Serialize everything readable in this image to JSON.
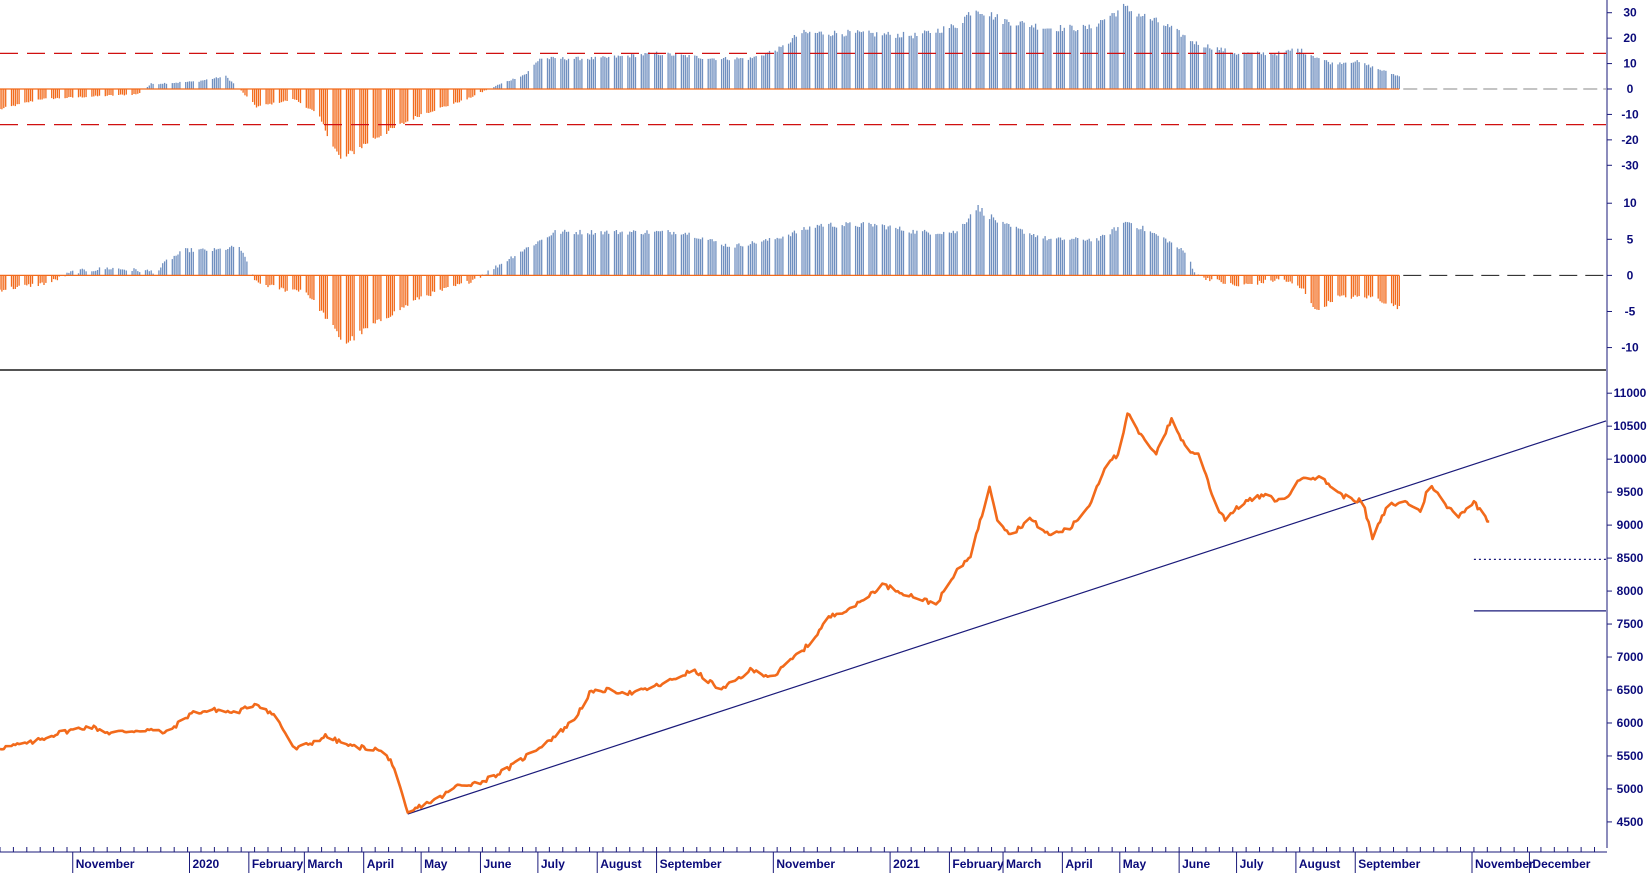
{
  "chart_data": [
    {
      "type": "bar",
      "panel": "oscillator-1",
      "x_start": "2019-09-24",
      "x_end": "2021-09-24",
      "ylim": [
        -35,
        35
      ],
      "ticks": [
        "30",
        "20",
        "10",
        "0",
        "-10",
        "-20",
        "-30"
      ],
      "tick_values": [
        30,
        20,
        10,
        0,
        -10,
        -20,
        -30
      ],
      "thresholds": [
        14,
        -14
      ],
      "colors": {
        "positive": "#6f8fbf",
        "negative": "#f26a1b",
        "threshold": "#d01010"
      },
      "anchors": [
        [
          "2019-09-24",
          -8
        ],
        [
          "2019-10-15",
          -4
        ],
        [
          "2019-11-10",
          -3
        ],
        [
          "2019-12-05",
          -2
        ],
        [
          "2019-12-12",
          2
        ],
        [
          "2020-01-05",
          3
        ],
        [
          "2020-01-20",
          5
        ],
        [
          "2020-01-27",
          0
        ],
        [
          "2020-02-05",
          -7
        ],
        [
          "2020-02-25",
          -4
        ],
        [
          "2020-03-08",
          -10
        ],
        [
          "2020-03-20",
          -28
        ],
        [
          "2020-04-05",
          -20
        ],
        [
          "2020-05-01",
          -10
        ],
        [
          "2020-05-25",
          -4
        ],
        [
          "2020-06-05",
          0
        ],
        [
          "2020-06-25",
          6
        ],
        [
          "2020-07-02",
          12
        ],
        [
          "2020-08-01",
          12
        ],
        [
          "2020-09-01",
          14
        ],
        [
          "2020-10-01",
          12
        ],
        [
          "2020-10-20",
          12
        ],
        [
          "2020-11-05",
          16
        ],
        [
          "2020-11-15",
          22
        ],
        [
          "2020-12-10",
          22
        ],
        [
          "2021-01-15",
          21
        ],
        [
          "2021-02-05",
          25
        ],
        [
          "2021-02-14",
          32
        ],
        [
          "2021-03-01",
          27
        ],
        [
          "2021-03-25",
          24
        ],
        [
          "2021-04-15",
          24
        ],
        [
          "2021-05-03",
          32
        ],
        [
          "2021-05-25",
          25
        ],
        [
          "2021-06-10",
          18
        ],
        [
          "2021-07-01",
          14
        ],
        [
          "2021-07-25",
          14
        ],
        [
          "2021-08-01",
          16
        ],
        [
          "2021-08-20",
          10
        ],
        [
          "2021-09-01",
          11
        ],
        [
          "2021-09-24",
          5
        ]
      ]
    },
    {
      "type": "bar",
      "panel": "oscillator-2",
      "x_start": "2019-09-24",
      "x_end": "2021-09-24",
      "ylim": [
        -12,
        11
      ],
      "ticks": [
        "10",
        "5",
        "0",
        "-5",
        "-10"
      ],
      "tick_values": [
        10,
        5,
        0,
        -5,
        -10
      ],
      "colors": {
        "positive": "#6f8fbf",
        "negative": "#f26a1b"
      },
      "anchors": [
        [
          "2019-09-24",
          -2
        ],
        [
          "2019-10-20",
          -1
        ],
        [
          "2019-11-01",
          0.5
        ],
        [
          "2019-11-20",
          1
        ],
        [
          "2019-12-15",
          0.5
        ],
        [
          "2019-12-20",
          2
        ],
        [
          "2019-12-30",
          3.5
        ],
        [
          "2020-01-15",
          3.5
        ],
        [
          "2020-01-27",
          4
        ],
        [
          "2020-02-05",
          -1
        ],
        [
          "2020-02-20",
          -2
        ],
        [
          "2020-03-01",
          -2
        ],
        [
          "2020-03-10",
          -5
        ],
        [
          "2020-03-22",
          -9.5
        ],
        [
          "2020-04-05",
          -7
        ],
        [
          "2020-05-01",
          -3
        ],
        [
          "2020-05-25",
          -1
        ],
        [
          "2020-06-05",
          0.5
        ],
        [
          "2020-06-20",
          3
        ],
        [
          "2020-07-10",
          6
        ],
        [
          "2020-08-15",
          6
        ],
        [
          "2020-09-15",
          6
        ],
        [
          "2020-10-10",
          4
        ],
        [
          "2020-11-01",
          5
        ],
        [
          "2020-11-25",
          7
        ],
        [
          "2020-12-25",
          7
        ],
        [
          "2021-01-15",
          6
        ],
        [
          "2021-02-05",
          6
        ],
        [
          "2021-02-15",
          9.5
        ],
        [
          "2021-03-01",
          7
        ],
        [
          "2021-03-25",
          5
        ],
        [
          "2021-04-20",
          5
        ],
        [
          "2021-05-05",
          7.5
        ],
        [
          "2021-05-25",
          5
        ],
        [
          "2021-06-05",
          3
        ],
        [
          "2021-06-10",
          0
        ],
        [
          "2021-07-01",
          -1.5
        ],
        [
          "2021-07-25",
          -0.5
        ],
        [
          "2021-08-05",
          -2
        ],
        [
          "2021-08-12",
          -5
        ],
        [
          "2021-08-22",
          -3
        ],
        [
          "2021-09-10",
          -3
        ],
        [
          "2021-09-24",
          -4.5
        ]
      ]
    },
    {
      "type": "line",
      "panel": "price",
      "x_start": "2019-09-24",
      "x_end": "2022-01-10",
      "ylim": [
        4150,
        11200
      ],
      "ticks": [
        "11000",
        "10500",
        "10000",
        "9500",
        "9000",
        "8500",
        "8000",
        "7500",
        "7000",
        "6500",
        "6000",
        "5500",
        "5000",
        "4500"
      ],
      "tick_values": [
        11000,
        10500,
        10000,
        9500,
        9000,
        8500,
        8000,
        7500,
        7000,
        6500,
        6000,
        5500,
        5000,
        4500
      ],
      "colors": {
        "price": "#f26a1b",
        "trendline": "#1a1a7a",
        "levels": "#1a1a7a"
      },
      "series": [
        {
          "points": [
            [
              "2019-09-24",
              5620
            ],
            [
              "2019-10-10",
              5700
            ],
            [
              "2019-10-25",
              5850
            ],
            [
              "2019-11-10",
              5950
            ],
            [
              "2019-11-20",
              5850
            ],
            [
              "2019-12-10",
              5900
            ],
            [
              "2019-12-20",
              5850
            ],
            [
              "2020-01-02",
              6150
            ],
            [
              "2020-01-15",
              6200
            ],
            [
              "2020-01-25",
              6150
            ],
            [
              "2020-02-05",
              6300
            ],
            [
              "2020-02-15",
              6100
            ],
            [
              "2020-02-25",
              5600
            ],
            [
              "2020-03-05",
              5700
            ],
            [
              "2020-03-12",
              5800
            ],
            [
              "2020-03-25",
              5650
            ],
            [
              "2020-04-08",
              5600
            ],
            [
              "2020-04-15",
              5450
            ],
            [
              "2020-04-20",
              5000
            ],
            [
              "2020-04-24",
              4620
            ],
            [
              "2020-05-01",
              4750
            ],
            [
              "2020-05-10",
              4850
            ],
            [
              "2020-05-20",
              5050
            ],
            [
              "2020-06-01",
              5100
            ],
            [
              "2020-06-15",
              5300
            ],
            [
              "2020-06-25",
              5500
            ],
            [
              "2020-07-10",
              5800
            ],
            [
              "2020-07-20",
              6050
            ],
            [
              "2020-07-28",
              6450
            ],
            [
              "2020-08-05",
              6500
            ],
            [
              "2020-08-20",
              6450
            ],
            [
              "2020-09-05",
              6600
            ],
            [
              "2020-09-20",
              6800
            ],
            [
              "2020-10-05",
              6500
            ],
            [
              "2020-10-20",
              6800
            ],
            [
              "2020-11-01",
              6700
            ],
            [
              "2020-11-10",
              6950
            ],
            [
              "2020-11-20",
              7200
            ],
            [
              "2020-11-30",
              7600
            ],
            [
              "2020-12-15",
              7800
            ],
            [
              "2020-12-28",
              8100
            ],
            [
              "2021-01-10",
              7950
            ],
            [
              "2021-01-25",
              7800
            ],
            [
              "2021-02-05",
              8300
            ],
            [
              "2021-02-12",
              8550
            ],
            [
              "2021-02-18",
              9150
            ],
            [
              "2021-02-22",
              9600
            ],
            [
              "2021-02-26",
              9100
            ],
            [
              "2021-03-05",
              8850
            ],
            [
              "2021-03-15",
              9100
            ],
            [
              "2021-03-25",
              8850
            ],
            [
              "2021-04-05",
              8950
            ],
            [
              "2021-04-15",
              9300
            ],
            [
              "2021-04-25",
              10000
            ],
            [
              "2021-05-01",
              10050
            ],
            [
              "2021-05-05",
              10700
            ],
            [
              "2021-05-12",
              10350
            ],
            [
              "2021-05-20",
              10100
            ],
            [
              "2021-05-28",
              10600
            ],
            [
              "2021-06-05",
              10150
            ],
            [
              "2021-06-12",
              10050
            ],
            [
              "2021-06-20",
              9300
            ],
            [
              "2021-06-25",
              9100
            ],
            [
              "2021-07-05",
              9350
            ],
            [
              "2021-07-15",
              9450
            ],
            [
              "2021-07-25",
              9350
            ],
            [
              "2021-08-05",
              9750
            ],
            [
              "2021-08-15",
              9700
            ],
            [
              "2021-08-25",
              9450
            ],
            [
              "2021-09-05",
              9350
            ],
            [
              "2021-09-10",
              8800
            ],
            [
              "2021-09-18",
              9300
            ],
            [
              "2021-09-28",
              9350
            ],
            [
              "2021-10-05",
              9200
            ],
            [
              "2021-10-10",
              9650
            ],
            [
              "2021-10-18",
              9300
            ],
            [
              "2021-10-25",
              9150
            ],
            [
              "2021-11-02",
              9350
            ],
            [
              "2021-11-10",
              9050
            ]
          ]
        }
      ],
      "trendline": [
        [
          "2020-04-24",
          4620
        ],
        [
          "2022-01-10",
          10580
        ]
      ],
      "levels": [
        {
          "y": 8480,
          "x_from": "2021-11-02",
          "style": "dotted"
        },
        {
          "y": 7700,
          "x_from": "2021-11-02",
          "style": "solid"
        }
      ],
      "months": [
        [
          "November",
          "2019-11-01"
        ],
        [
          "2020",
          "2020-01-01"
        ],
        [
          "February",
          "2020-02-01"
        ],
        [
          "March",
          "2020-03-01"
        ],
        [
          "April",
          "2020-04-01"
        ],
        [
          "May",
          "2020-05-01"
        ],
        [
          "June",
          "2020-06-01"
        ],
        [
          "July",
          "2020-07-01"
        ],
        [
          "August",
          "2020-08-01"
        ],
        [
          "September",
          "2020-09-01"
        ],
        [
          "November",
          "2020-11-01"
        ],
        [
          "2021",
          "2021-01-01"
        ],
        [
          "February",
          "2021-02-01"
        ],
        [
          "March",
          "2021-03-01"
        ],
        [
          "April",
          "2021-04-01"
        ],
        [
          "May",
          "2021-05-01"
        ],
        [
          "June",
          "2021-06-01"
        ],
        [
          "July",
          "2021-07-01"
        ],
        [
          "August",
          "2021-08-01"
        ],
        [
          "September",
          "2021-09-01"
        ],
        [
          "November",
          "2021-11-01"
        ],
        [
          "December",
          "2021-12-01"
        ]
      ]
    }
  ]
}
